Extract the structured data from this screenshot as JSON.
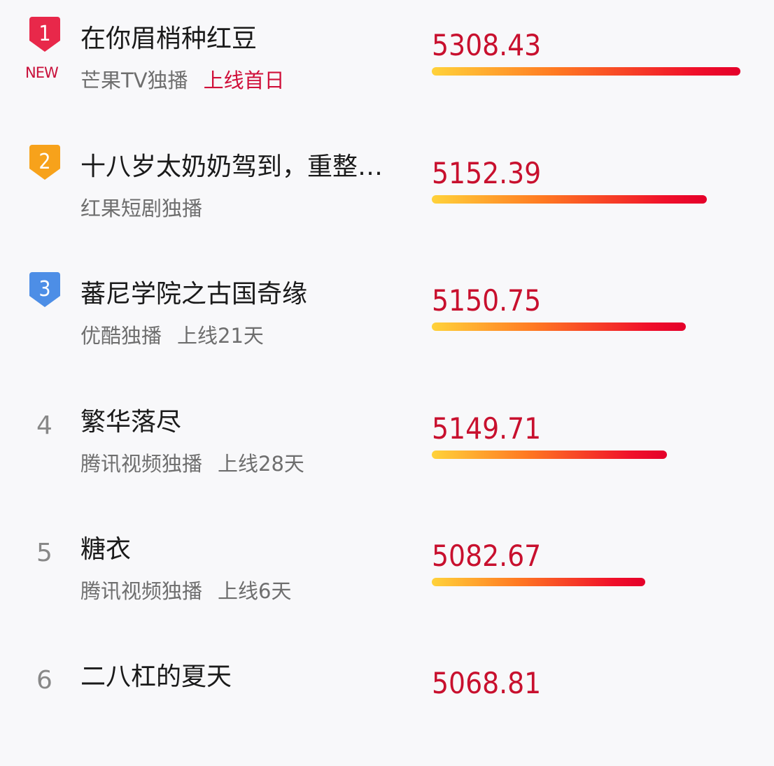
{
  "colors": {
    "rank1": "#e8284a",
    "rank2": "#f7a21b",
    "rank3": "#4d8ee6",
    "score": "#c8102e",
    "highlight": "#d0103a"
  },
  "items": [
    {
      "rank": "1",
      "badge": "NEW",
      "title": "在你眉梢种红豆",
      "platform": "芒果TV独播",
      "online": "上线首日",
      "online_highlight": true,
      "score": "5308.43",
      "fill": 1.0
    },
    {
      "rank": "2",
      "title": "十八岁太奶奶驾到，重整…",
      "platform": "红果短剧独播",
      "score": "5152.39",
      "fill": 0.891
    },
    {
      "rank": "3",
      "title": "蕃尼学院之古国奇缘",
      "platform": "优酷独播",
      "online": "上线21天",
      "score": "5150.75",
      "fill": 0.823
    },
    {
      "rank": "4",
      "title": "繁华落尽",
      "platform": "腾讯视频独播",
      "online": "上线28天",
      "score": "5149.71",
      "fill": 0.762
    },
    {
      "rank": "5",
      "title": "糖衣",
      "platform": "腾讯视频独播",
      "online": "上线6天",
      "score": "5082.67",
      "fill": 0.692
    },
    {
      "rank": "6",
      "title": "二八杠的夏天",
      "score": "5068.81"
    }
  ]
}
